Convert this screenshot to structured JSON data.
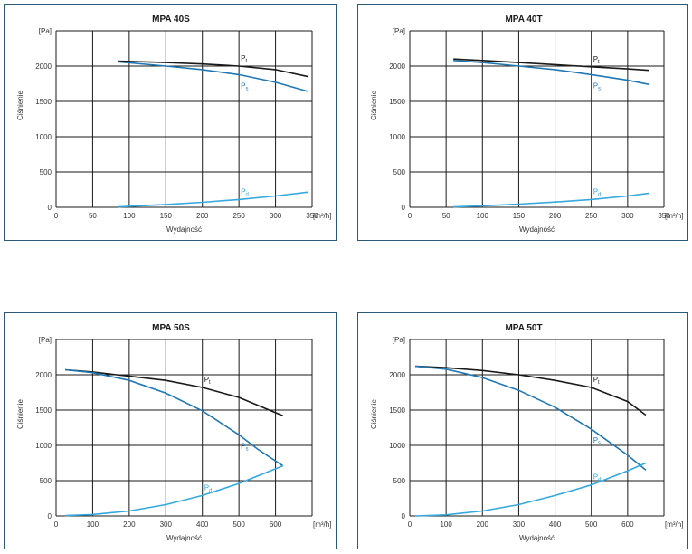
{
  "chart_data": [
    {
      "type": "line",
      "title": "MPA 40S",
      "xlabel": "Wydajność",
      "ylabel": "Ciśnienie",
      "x_unit": "[m³/h]",
      "y_unit": "[Pa]",
      "xlim": [
        0,
        350
      ],
      "ylim": [
        0,
        2500
      ],
      "x_ticks": [
        0,
        50,
        100,
        150,
        200,
        250,
        300,
        350
      ],
      "y_ticks": [
        0,
        500,
        1000,
        1500,
        2000
      ],
      "series": [
        {
          "name": "Pt",
          "color": "#1a1a1a",
          "x": [
            85,
            150,
            200,
            250,
            300,
            345
          ],
          "y": [
            2070,
            2050,
            2030,
            2000,
            1950,
            1850
          ]
        },
        {
          "name": "Ps",
          "color": "#1f78b4",
          "x": [
            85,
            150,
            200,
            250,
            300,
            345
          ],
          "y": [
            2060,
            2000,
            1950,
            1880,
            1770,
            1640
          ]
        },
        {
          "name": "Pd",
          "color": "#35a8de",
          "x": [
            85,
            150,
            200,
            250,
            300,
            345
          ],
          "y": [
            5,
            40,
            70,
            110,
            160,
            215
          ]
        }
      ]
    },
    {
      "type": "line",
      "title": "MPA 40T",
      "xlabel": "Wydajność",
      "ylabel": "Ciśnienie",
      "x_unit": "[m³/h]",
      "y_unit": "[Pa]",
      "xlim": [
        0,
        350
      ],
      "ylim": [
        0,
        2500
      ],
      "x_ticks": [
        0,
        50,
        100,
        150,
        200,
        250,
        300,
        350
      ],
      "y_ticks": [
        0,
        500,
        1000,
        1500,
        2000
      ],
      "series": [
        {
          "name": "Pt",
          "color": "#1a1a1a",
          "x": [
            60,
            100,
            150,
            200,
            250,
            300,
            330
          ],
          "y": [
            2100,
            2080,
            2050,
            2020,
            1990,
            1960,
            1940
          ]
        },
        {
          "name": "Ps",
          "color": "#1f78b4",
          "x": [
            60,
            100,
            150,
            200,
            250,
            300,
            330
          ],
          "y": [
            2080,
            2050,
            2000,
            1950,
            1880,
            1800,
            1740
          ]
        },
        {
          "name": "Pd",
          "color": "#35a8de",
          "x": [
            60,
            100,
            150,
            200,
            250,
            300,
            330
          ],
          "y": [
            5,
            20,
            45,
            75,
            110,
            160,
            200
          ]
        }
      ]
    },
    {
      "type": "line",
      "title": "MPA 50S",
      "xlabel": "Wydajność",
      "ylabel": "Ciśnienie",
      "x_unit": "[m³/h]",
      "y_unit": "[Pa]",
      "xlim": [
        0,
        700
      ],
      "ylim": [
        0,
        2500
      ],
      "x_ticks": [
        0,
        100,
        200,
        300,
        400,
        500,
        600
      ],
      "y_ticks": [
        0,
        500,
        1000,
        1500,
        2000
      ],
      "series": [
        {
          "name": "Pt",
          "color": "#1a1a1a",
          "x": [
            25,
            100,
            200,
            300,
            400,
            500,
            620
          ],
          "y": [
            2070,
            2040,
            1980,
            1920,
            1820,
            1680,
            1420
          ]
        },
        {
          "name": "Ps",
          "color": "#1f78b4",
          "x": [
            25,
            100,
            200,
            300,
            400,
            500,
            550,
            620
          ],
          "y": [
            2070,
            2030,
            1920,
            1740,
            1490,
            1150,
            950,
            710
          ]
        },
        {
          "name": "Pd",
          "color": "#35a8de",
          "x": [
            25,
            100,
            200,
            300,
            400,
            500,
            620
          ],
          "y": [
            5,
            20,
            70,
            160,
            290,
            460,
            710
          ]
        }
      ]
    },
    {
      "type": "line",
      "title": "MPA 50T",
      "xlabel": "Wydajność",
      "ylabel": "Ciśnienie",
      "x_unit": "[m³/h]",
      "y_unit": "[Pa]",
      "xlim": [
        0,
        700
      ],
      "ylim": [
        0,
        2500
      ],
      "x_ticks": [
        0,
        100,
        200,
        300,
        400,
        500,
        600
      ],
      "y_ticks": [
        0,
        500,
        1000,
        1500,
        2000
      ],
      "series": [
        {
          "name": "Pt",
          "color": "#1a1a1a",
          "x": [
            15,
            100,
            200,
            300,
            400,
            500,
            600,
            650
          ],
          "y": [
            2120,
            2100,
            2060,
            2000,
            1920,
            1820,
            1620,
            1430
          ]
        },
        {
          "name": "Ps",
          "color": "#1f78b4",
          "x": [
            15,
            100,
            200,
            300,
            400,
            500,
            600,
            650
          ],
          "y": [
            2120,
            2080,
            1960,
            1780,
            1540,
            1230,
            860,
            650
          ]
        },
        {
          "name": "Pd",
          "color": "#35a8de",
          "x": [
            15,
            100,
            200,
            300,
            400,
            500,
            600,
            650
          ],
          "y": [
            0,
            15,
            70,
            160,
            290,
            440,
            640,
            750
          ]
        }
      ]
    }
  ]
}
